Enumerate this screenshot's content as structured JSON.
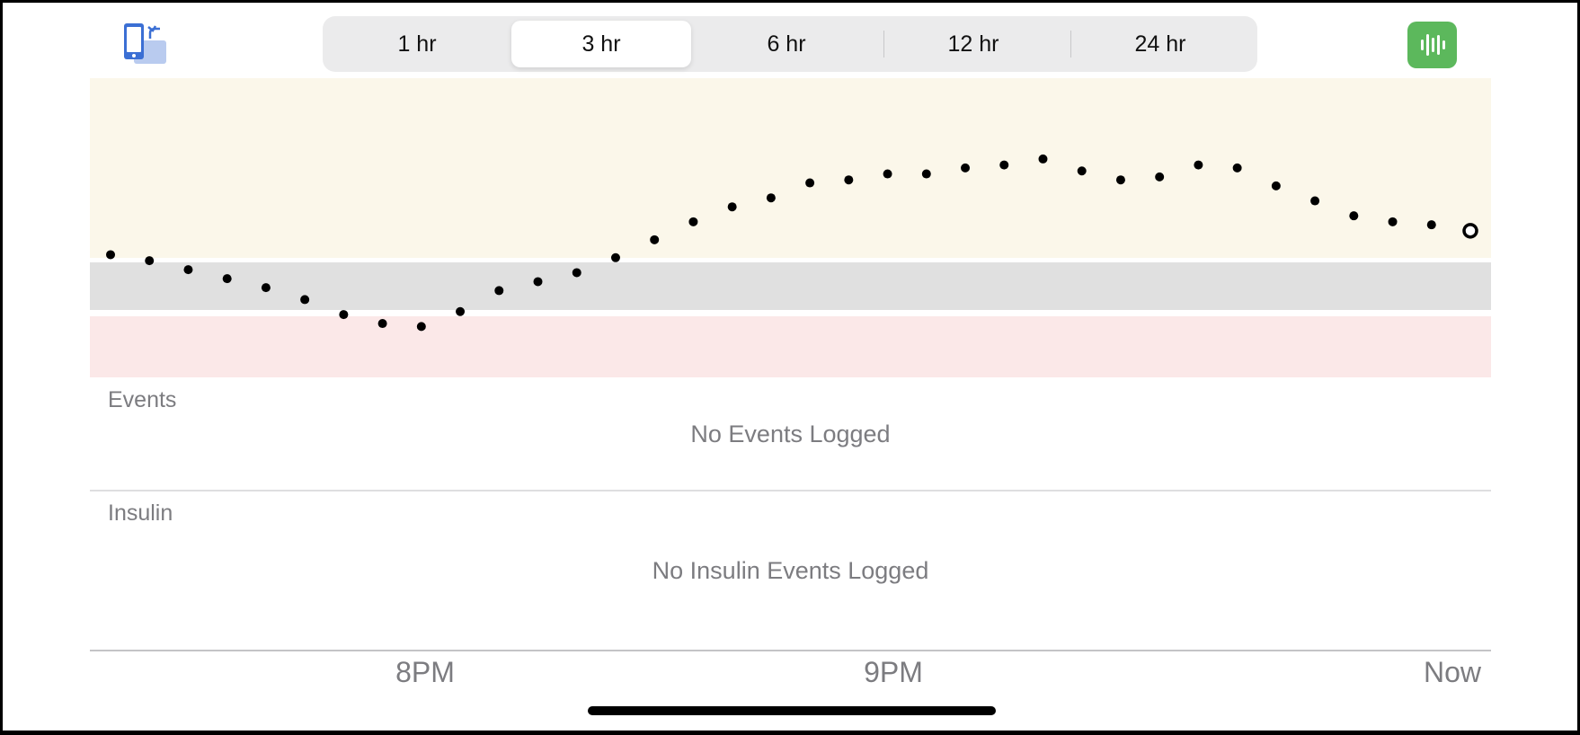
{
  "time_ranges": {
    "options": [
      "1 hr",
      "3 hr",
      "6 hr",
      "12 hr",
      "24 hr"
    ],
    "selected": "3 hr"
  },
  "icons": {
    "rotate": "phone-rotate-icon",
    "sound": "sound-waveform-icon"
  },
  "colors": {
    "high_band": "#fbf7ea",
    "target_band": "#e0e0e0",
    "low_band": "#fbe8e8",
    "accent_green": "#5cb85c",
    "rotate_blue": "#3b6fd4"
  },
  "events": {
    "label": "Events",
    "empty_message": "No Events Logged"
  },
  "insulin": {
    "label": "Insulin",
    "empty_message": "No Insulin Events Logged"
  },
  "x_axis": {
    "ticks": [
      "8PM",
      "9PM",
      "Now"
    ]
  },
  "chart_data": {
    "type": "scatter",
    "title": "",
    "xlabel": "",
    "ylabel": "",
    "x_unit": "minutes before now",
    "x": [
      -175,
      -170,
      -165,
      -160,
      -155,
      -150,
      -145,
      -140,
      -135,
      -130,
      -125,
      -120,
      -115,
      -110,
      -105,
      -100,
      -95,
      -90,
      -85,
      -80,
      -75,
      -70,
      -65,
      -60,
      -55,
      -50,
      -45,
      -40,
      -35,
      -30,
      -25,
      -20,
      -15,
      -10,
      -5,
      0
    ],
    "values": [
      0.41,
      0.39,
      0.36,
      0.33,
      0.3,
      0.26,
      0.21,
      0.18,
      0.17,
      0.22,
      0.29,
      0.32,
      0.35,
      0.4,
      0.46,
      0.52,
      0.57,
      0.6,
      0.65,
      0.66,
      0.68,
      0.68,
      0.7,
      0.71,
      0.73,
      0.69,
      0.66,
      0.67,
      0.71,
      0.7,
      0.64,
      0.59,
      0.54,
      0.52,
      0.51,
      0.49
    ],
    "last_point_style": "hollow",
    "bands": [
      "high",
      "target",
      "low"
    ],
    "grid": false,
    "legend": "none"
  }
}
